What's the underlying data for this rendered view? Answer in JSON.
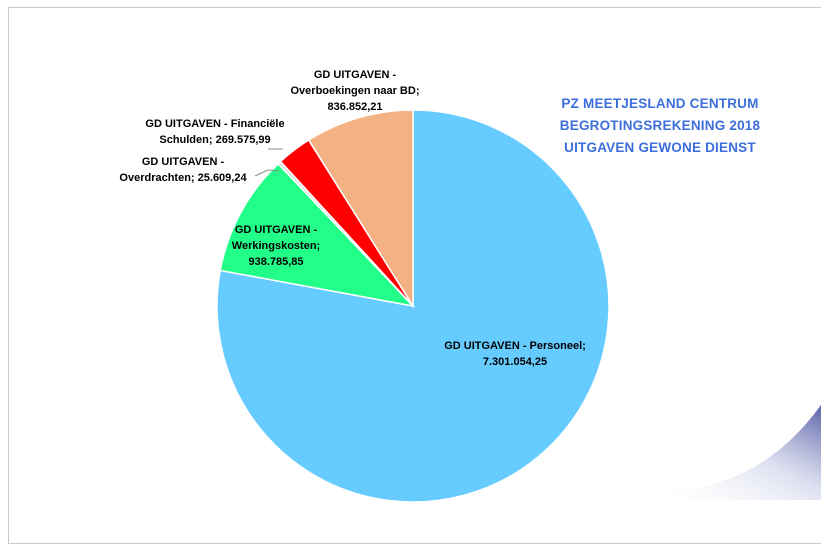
{
  "title_lines": [
    "PZ  MEETJESLAND  CENTRUM",
    "BEGROTINGSREKENING  2018",
    "UITGAVEN GEWONE DIENST"
  ],
  "colors": {
    "personeel": "#66ccff",
    "werkingskosten": "#22ff88",
    "overdrachten": "#d9d9d9",
    "financiele_schulden": "#ff0000",
    "overboekingen": "#f4b183",
    "title": "#3c6fdc"
  },
  "labels": {
    "personeel": [
      "GD UITGAVEN - Personeel;",
      "7.301.054,25"
    ],
    "werkingskosten": [
      "GD UITGAVEN -",
      "Werkingskosten;",
      "938.785,85"
    ],
    "overdrachten": [
      "GD UITGAVEN -",
      "Overdrachten;  25.609,24"
    ],
    "financiele_schulden": [
      "GD UITGAVEN - Financiële",
      "Schulden;  269.575,99"
    ],
    "overboekingen": [
      "GD UITGAVEN -",
      "Overboekingen naar BD;",
      "836.852,21"
    ]
  },
  "chart_data": {
    "type": "pie",
    "title": "PZ  MEETJESLAND  CENTRUM BEGROTINGSREKENING  2018 UITGAVEN GEWONE DIENST",
    "start": "12 o'clock, clockwise",
    "slices": [
      {
        "key": "personeel",
        "label": "GD UITGAVEN - Personeel",
        "value": 7301054.25
      },
      {
        "key": "werkingskosten",
        "label": "GD UITGAVEN - Werkingskosten",
        "value": 938785.85
      },
      {
        "key": "overdrachten",
        "label": "GD UITGAVEN - Overdrachten",
        "value": 25609.24
      },
      {
        "key": "financiele_schulden",
        "label": "GD UITGAVEN - Financiële Schulden",
        "value": 269575.99
      },
      {
        "key": "overboekingen",
        "label": "GD UITGAVEN - Overboekingen naar BD",
        "value": 836852.21
      }
    ]
  }
}
